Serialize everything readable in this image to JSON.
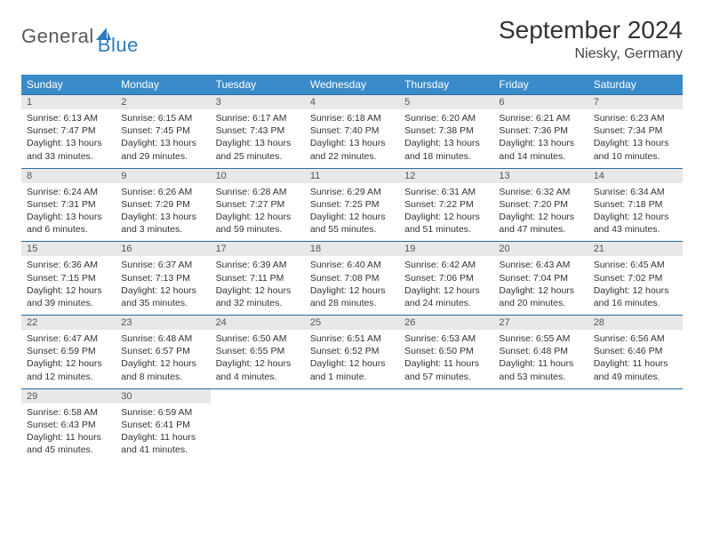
{
  "logo": {
    "text1": "General",
    "text2": "Blue",
    "accent": "#2b7bbd",
    "text_color": "#5a5a5a"
  },
  "title": "September 2024",
  "location": "Niesky, Germany",
  "header_bg": "#3a8bc9",
  "daynum_bg": "#e8e8e8",
  "row_border": "#2b6a9e",
  "weekdays": [
    "Sunday",
    "Monday",
    "Tuesday",
    "Wednesday",
    "Thursday",
    "Friday",
    "Saturday"
  ],
  "days": [
    {
      "n": "1",
      "sr": "6:13 AM",
      "ss": "7:47 PM",
      "dl": "13 hours and 33 minutes."
    },
    {
      "n": "2",
      "sr": "6:15 AM",
      "ss": "7:45 PM",
      "dl": "13 hours and 29 minutes."
    },
    {
      "n": "3",
      "sr": "6:17 AM",
      "ss": "7:43 PM",
      "dl": "13 hours and 25 minutes."
    },
    {
      "n": "4",
      "sr": "6:18 AM",
      "ss": "7:40 PM",
      "dl": "13 hours and 22 minutes."
    },
    {
      "n": "5",
      "sr": "6:20 AM",
      "ss": "7:38 PM",
      "dl": "13 hours and 18 minutes."
    },
    {
      "n": "6",
      "sr": "6:21 AM",
      "ss": "7:36 PM",
      "dl": "13 hours and 14 minutes."
    },
    {
      "n": "7",
      "sr": "6:23 AM",
      "ss": "7:34 PM",
      "dl": "13 hours and 10 minutes."
    },
    {
      "n": "8",
      "sr": "6:24 AM",
      "ss": "7:31 PM",
      "dl": "13 hours and 6 minutes."
    },
    {
      "n": "9",
      "sr": "6:26 AM",
      "ss": "7:29 PM",
      "dl": "13 hours and 3 minutes."
    },
    {
      "n": "10",
      "sr": "6:28 AM",
      "ss": "7:27 PM",
      "dl": "12 hours and 59 minutes."
    },
    {
      "n": "11",
      "sr": "6:29 AM",
      "ss": "7:25 PM",
      "dl": "12 hours and 55 minutes."
    },
    {
      "n": "12",
      "sr": "6:31 AM",
      "ss": "7:22 PM",
      "dl": "12 hours and 51 minutes."
    },
    {
      "n": "13",
      "sr": "6:32 AM",
      "ss": "7:20 PM",
      "dl": "12 hours and 47 minutes."
    },
    {
      "n": "14",
      "sr": "6:34 AM",
      "ss": "7:18 PM",
      "dl": "12 hours and 43 minutes."
    },
    {
      "n": "15",
      "sr": "6:36 AM",
      "ss": "7:15 PM",
      "dl": "12 hours and 39 minutes."
    },
    {
      "n": "16",
      "sr": "6:37 AM",
      "ss": "7:13 PM",
      "dl": "12 hours and 35 minutes."
    },
    {
      "n": "17",
      "sr": "6:39 AM",
      "ss": "7:11 PM",
      "dl": "12 hours and 32 minutes."
    },
    {
      "n": "18",
      "sr": "6:40 AM",
      "ss": "7:08 PM",
      "dl": "12 hours and 28 minutes."
    },
    {
      "n": "19",
      "sr": "6:42 AM",
      "ss": "7:06 PM",
      "dl": "12 hours and 24 minutes."
    },
    {
      "n": "20",
      "sr": "6:43 AM",
      "ss": "7:04 PM",
      "dl": "12 hours and 20 minutes."
    },
    {
      "n": "21",
      "sr": "6:45 AM",
      "ss": "7:02 PM",
      "dl": "12 hours and 16 minutes."
    },
    {
      "n": "22",
      "sr": "6:47 AM",
      "ss": "6:59 PM",
      "dl": "12 hours and 12 minutes."
    },
    {
      "n": "23",
      "sr": "6:48 AM",
      "ss": "6:57 PM",
      "dl": "12 hours and 8 minutes."
    },
    {
      "n": "24",
      "sr": "6:50 AM",
      "ss": "6:55 PM",
      "dl": "12 hours and 4 minutes."
    },
    {
      "n": "25",
      "sr": "6:51 AM",
      "ss": "6:52 PM",
      "dl": "12 hours and 1 minute."
    },
    {
      "n": "26",
      "sr": "6:53 AM",
      "ss": "6:50 PM",
      "dl": "11 hours and 57 minutes."
    },
    {
      "n": "27",
      "sr": "6:55 AM",
      "ss": "6:48 PM",
      "dl": "11 hours and 53 minutes."
    },
    {
      "n": "28",
      "sr": "6:56 AM",
      "ss": "6:46 PM",
      "dl": "11 hours and 49 minutes."
    },
    {
      "n": "29",
      "sr": "6:58 AM",
      "ss": "6:43 PM",
      "dl": "11 hours and 45 minutes."
    },
    {
      "n": "30",
      "sr": "6:59 AM",
      "ss": "6:41 PM",
      "dl": "11 hours and 41 minutes."
    }
  ],
  "labels": {
    "sunrise": "Sunrise:",
    "sunset": "Sunset:",
    "daylight": "Daylight:"
  }
}
